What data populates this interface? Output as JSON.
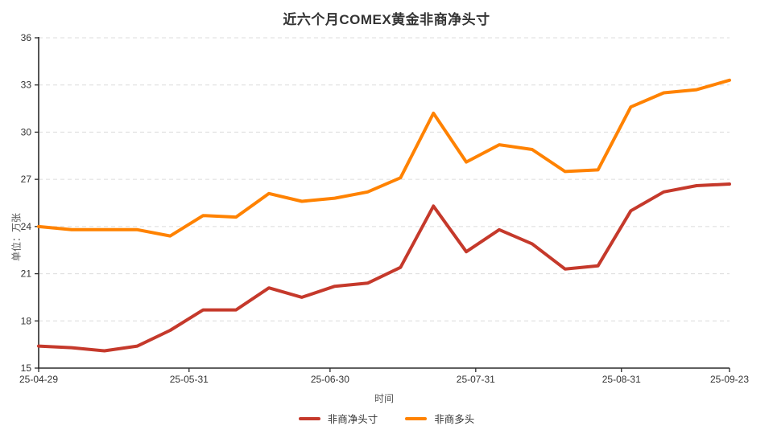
{
  "chart": {
    "title": "近六个月COMEX黄金非商净头寸",
    "ylabel": "单位：万张",
    "xlabel": "时间"
  },
  "colors": {
    "net_line": "#c5392b",
    "long_line": "#ff8200",
    "grid": "#dcdcdc",
    "axis": "#2b2b2b",
    "tick_label": "#333333",
    "axis_name": "#555555",
    "title": "#333333"
  },
  "chart_data": {
    "type": "line",
    "title": "近六个月COMEX黄金非商净头寸",
    "xlabel": "时间",
    "ylabel": "单位：万张",
    "x": [
      "25-04-29",
      "25-05-06",
      "25-05-13",
      "25-05-20",
      "25-05-27",
      "25-06-03",
      "25-06-10",
      "25-06-17",
      "25-06-24",
      "25-07-01",
      "25-07-08",
      "25-07-15",
      "25-07-22",
      "25-07-29",
      "25-08-05",
      "25-08-12",
      "25-08-19",
      "25-08-26",
      "25-09-02",
      "25-09-09",
      "25-09-16",
      "25-09-23"
    ],
    "series": [
      {
        "name": "非商净头寸",
        "color": "#c5392b",
        "values": [
          16.4,
          16.3,
          16.1,
          16.4,
          17.4,
          18.7,
          18.7,
          20.1,
          19.5,
          20.2,
          20.4,
          21.4,
          25.3,
          22.4,
          23.8,
          22.9,
          21.3,
          21.5,
          25.0,
          26.2,
          26.6,
          26.7
        ]
      },
      {
        "name": "非商多头",
        "color": "#ff8200",
        "values": [
          24.0,
          23.8,
          23.8,
          23.8,
          23.4,
          24.7,
          24.6,
          26.1,
          25.6,
          25.8,
          26.2,
          27.1,
          31.2,
          28.1,
          29.2,
          28.9,
          27.5,
          27.6,
          31.6,
          32.5,
          32.7,
          33.3
        ]
      }
    ],
    "ylim": [
      15,
      36
    ],
    "y_ticks": [
      15,
      18,
      21,
      24,
      27,
      30,
      33,
      36
    ],
    "x_tick_labels": [
      "25-04-29",
      "25-05-31",
      "25-06-30",
      "25-07-31",
      "25-08-31",
      "25-09-23"
    ],
    "grid": true,
    "grid_style": "dashed",
    "legend_position": "bottom"
  }
}
